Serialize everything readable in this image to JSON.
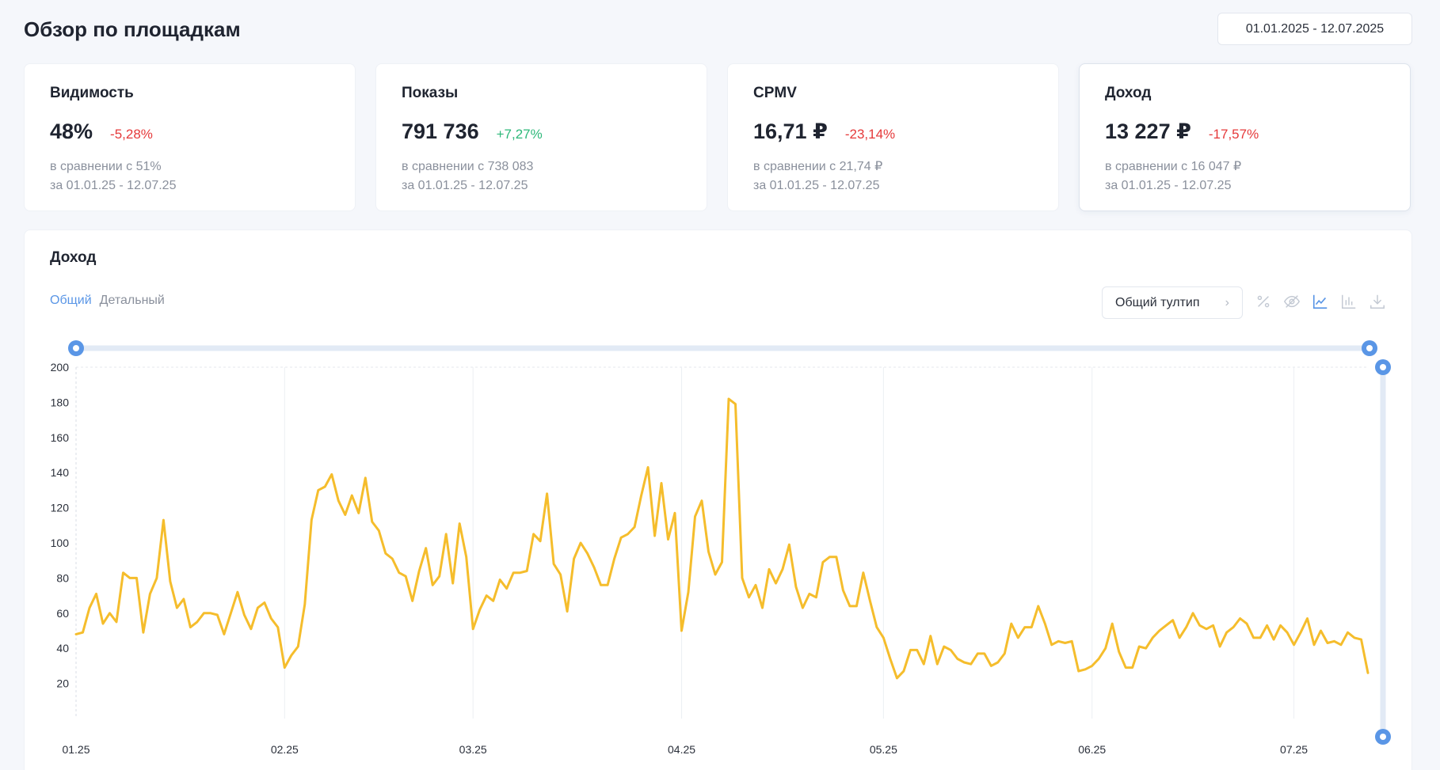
{
  "page": {
    "title": "Обзор по площадкам",
    "date_range": "01.01.2025 - 12.07.2025"
  },
  "cards": [
    {
      "title": "Видимость",
      "value": "48%",
      "delta": "-5,28%",
      "delta_sign": "neg",
      "compare": "в сравнении с 51%",
      "period": "за 01.01.25 - 12.07.25"
    },
    {
      "title": "Показы",
      "value": "791 736",
      "delta": "+7,27%",
      "delta_sign": "pos",
      "compare": "в сравнении с 738 083",
      "period": "за 01.01.25 - 12.07.25"
    },
    {
      "title": "CPMV",
      "value": "16,71 ₽",
      "delta": "-23,14%",
      "delta_sign": "neg",
      "compare": "в сравнении с 21,74 ₽",
      "period": "за 01.01.25 - 12.07.25"
    },
    {
      "title": "Доход",
      "value": "13 227 ₽",
      "delta": "-17,57%",
      "delta_sign": "neg",
      "compare": "в сравнении с 16 047 ₽",
      "period": "за 01.01.25 - 12.07.25"
    }
  ],
  "chart_panel": {
    "title": "Доход",
    "tabs": [
      "Общий",
      "Детальный"
    ],
    "active_tab": 0,
    "tooltip_button": "Общий тултип",
    "tools": [
      "percent-icon",
      "eye-off-icon",
      "line-chart-icon",
      "bar-chart-icon",
      "download-icon"
    ],
    "active_tool": "line-chart-icon"
  },
  "colors": {
    "accent": "#5a96e6",
    "line": "#f5bd2c",
    "negative": "#e5393a",
    "positive": "#2db879"
  },
  "chart_data": {
    "type": "line",
    "title": "",
    "xlabel": "",
    "ylabel": "",
    "ylim": [
      0,
      200
    ],
    "yticks": [
      20,
      40,
      60,
      80,
      100,
      120,
      140,
      160,
      180,
      200
    ],
    "x_tick_labels": [
      "01.25",
      "02.25",
      "03.25",
      "04.25",
      "05.25",
      "06.25",
      "07.25"
    ],
    "x_range": [
      "2025-01-01",
      "2025-07-12"
    ],
    "grid": "vertical-at-month-starts",
    "series": [
      {
        "values": [
          48,
          49,
          63,
          71,
          54,
          60,
          55,
          83,
          80,
          80,
          49,
          71,
          80,
          113,
          78,
          63,
          68,
          52,
          55,
          60,
          60,
          59,
          48,
          60,
          72,
          59,
          51,
          63,
          66,
          57,
          52,
          29,
          36,
          41,
          65,
          113,
          130,
          132,
          139,
          124,
          116,
          127,
          117,
          137,
          112,
          107,
          94,
          91,
          83,
          81,
          67,
          84,
          97,
          76,
          81,
          105,
          77,
          111,
          92,
          51,
          62,
          70,
          67,
          79,
          74,
          83,
          83,
          84,
          105,
          101,
          128,
          88,
          82,
          61,
          91,
          100,
          94,
          86,
          76,
          76,
          91,
          103,
          105,
          109,
          127,
          143,
          104,
          134,
          102,
          117,
          50,
          72,
          115,
          124,
          95,
          82,
          89,
          182,
          179,
          80,
          69,
          76,
          63,
          85,
          77,
          85,
          99,
          75,
          63,
          71,
          69,
          89,
          92,
          92,
          73,
          64,
          64,
          83,
          67,
          52,
          46,
          34,
          23,
          27,
          39,
          39,
          31,
          47,
          31,
          41,
          39,
          34,
          32,
          31,
          37,
          37,
          30,
          32,
          37,
          54,
          46,
          52,
          52,
          64,
          54,
          42,
          44,
          43,
          44,
          27,
          28,
          30,
          34,
          40,
          54,
          38,
          29,
          29,
          41,
          40,
          46,
          50,
          53,
          56,
          46,
          52,
          60,
          53,
          51,
          53,
          41,
          49,
          52,
          57,
          54,
          46,
          46,
          53,
          45,
          53,
          49,
          42,
          49,
          57,
          42,
          50,
          43,
          44,
          42,
          49,
          46,
          45,
          26
        ]
      }
    ]
  }
}
